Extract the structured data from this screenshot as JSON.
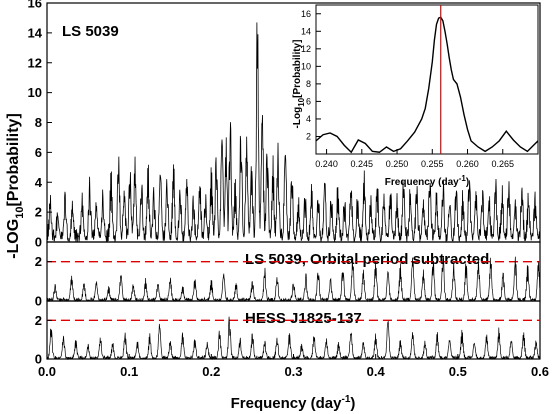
{
  "chart_data": [
    {
      "type": "line",
      "panel": "top",
      "label": "LS 5039",
      "x_range": [
        0.0,
        0.6
      ],
      "ylim": [
        0,
        16
      ],
      "y_ticks": [
        "0",
        "2",
        "4",
        "6",
        "8",
        "10",
        "12",
        "14",
        "16"
      ],
      "x_peaks": [
        0.004,
        0.013,
        0.022,
        0.031,
        0.043,
        0.052,
        0.06,
        0.068,
        0.078,
        0.087,
        0.094,
        0.101,
        0.107,
        0.115,
        0.123,
        0.13,
        0.138,
        0.146,
        0.154,
        0.162,
        0.17,
        0.178,
        0.186,
        0.193,
        0.2,
        0.206,
        0.213,
        0.218,
        0.223,
        0.229,
        0.236,
        0.243,
        0.249,
        0.256,
        0.262,
        0.268,
        0.275,
        0.281,
        0.29,
        0.298,
        0.306,
        0.314,
        0.322,
        0.33,
        0.338,
        0.346,
        0.354,
        0.362,
        0.37,
        0.378,
        0.386,
        0.394,
        0.402,
        0.41,
        0.418,
        0.426,
        0.434,
        0.442,
        0.45,
        0.458,
        0.466,
        0.474,
        0.482,
        0.49,
        0.498,
        0.506,
        0.514,
        0.522,
        0.53,
        0.538,
        0.546,
        0.554,
        0.562,
        0.57,
        0.578,
        0.586,
        0.594
      ],
      "y_peaks": [
        2.5,
        1.8,
        3.0,
        2.3,
        2.8,
        3.6,
        2.4,
        3.0,
        4.2,
        5.5,
        3.3,
        4.6,
        5.2,
        3.8,
        4.7,
        3.2,
        4.6,
        3.9,
        5.2,
        3.3,
        4.3,
        2.6,
        3.6,
        2.7,
        4.4,
        5.6,
        7.6,
        6.2,
        8.3,
        3.5,
        7.3,
        6.8,
        5.2,
        15.4,
        9.0,
        6.6,
        5.0,
        5.9,
        6.4,
        4.3,
        2.5,
        2.9,
        3.3,
        2.7,
        4.1,
        2.6,
        3.4,
        2.4,
        3.6,
        2.7,
        3.9,
        2.5,
        3.7,
        2.8,
        3.3,
        2.6,
        3.9,
        3.0,
        3.6,
        2.7,
        4.2,
        3.0,
        3.6,
        2.5,
        3.8,
        2.9,
        4.2,
        3.1,
        3.6,
        2.7,
        4.3,
        3.0,
        3.5,
        2.6,
        3.5,
        2.8,
        2.9
      ]
    },
    {
      "type": "line",
      "panel": "inset",
      "xlabel": "Frequency (day",
      "xlabel_sup": "-1",
      "xlabel_close": ")",
      "ylabel": "-Log",
      "ylabel_sub": "10",
      "ylabel_rest": "[Probability]",
      "x_range": [
        0.2385,
        0.27
      ],
      "ylim": [
        0,
        17
      ],
      "x_ticks": [
        "0.240",
        "0.245",
        "0.250",
        "0.255",
        "0.260",
        "0.265"
      ],
      "y_ticks": [
        "2",
        "4",
        "6",
        "8",
        "10",
        "12",
        "14",
        "16"
      ],
      "marker_x": 0.2562,
      "marker_color": "#dd0000",
      "x": [
        0.2385,
        0.2395,
        0.2405,
        0.2415,
        0.2425,
        0.2435,
        0.2445,
        0.2455,
        0.2465,
        0.2475,
        0.2485,
        0.2495,
        0.2505,
        0.2515,
        0.2525,
        0.2535,
        0.254,
        0.2545,
        0.255,
        0.2553,
        0.2556,
        0.2559,
        0.2562,
        0.2565,
        0.2568,
        0.2571,
        0.2574,
        0.2577,
        0.258,
        0.2585,
        0.259,
        0.2595,
        0.26,
        0.2605,
        0.2615,
        0.2625,
        0.2635,
        0.2645,
        0.2655,
        0.2665,
        0.2675,
        0.2685,
        0.27
      ],
      "y": [
        1.5,
        2.2,
        2.4,
        2.0,
        1.0,
        0.2,
        1.6,
        1.2,
        0.3,
        0.2,
        0.8,
        0.3,
        0.6,
        1.5,
        2.5,
        4.0,
        5.2,
        7.5,
        10.5,
        13.0,
        14.8,
        15.5,
        15.6,
        15.2,
        14.0,
        12.6,
        11.0,
        9.6,
        8.5,
        8.0,
        6.5,
        4.5,
        2.8,
        1.5,
        0.8,
        0.3,
        0.8,
        1.5,
        2.6,
        1.6,
        0.8,
        0.3,
        1.5
      ]
    },
    {
      "type": "line",
      "panel": "middle",
      "label": "LS 5039, Orbital period subtracted",
      "x_range": [
        0.0,
        0.6
      ],
      "ylim": [
        0,
        3
      ],
      "y_ticks": [
        "0",
        "2"
      ],
      "threshold": 2,
      "threshold_color": "#dd0000",
      "x_peaks": [
        0.01,
        0.03,
        0.045,
        0.06,
        0.075,
        0.09,
        0.105,
        0.12,
        0.135,
        0.15,
        0.165,
        0.18,
        0.2,
        0.215,
        0.23,
        0.25,
        0.265,
        0.28,
        0.3,
        0.315,
        0.33,
        0.345,
        0.36,
        0.372,
        0.385,
        0.4,
        0.415,
        0.43,
        0.445,
        0.458,
        0.47,
        0.482,
        0.495,
        0.51,
        0.525,
        0.54,
        0.555,
        0.57,
        0.585,
        0.598
      ],
      "y_peaks": [
        0.8,
        1.3,
        0.9,
        1.0,
        0.7,
        1.4,
        0.8,
        1.0,
        0.9,
        1.2,
        0.7,
        1.1,
        1.0,
        1.5,
        0.9,
        1.0,
        1.6,
        1.2,
        0.9,
        1.3,
        1.6,
        1.1,
        1.8,
        2.2,
        1.5,
        2.0,
        1.6,
        1.8,
        2.3,
        1.5,
        2.2,
        2.4,
        1.8,
        2.0,
        2.1,
        2.2,
        1.5,
        2.3,
        1.8,
        2.0
      ]
    },
    {
      "type": "line",
      "panel": "bottom",
      "label": "HESS J1825-137",
      "xlabel": "Frequency (day",
      "xlabel_sup": "-1",
      "xlabel_close": ")",
      "x_range": [
        0.0,
        0.6
      ],
      "x_ticks": [
        "0.0",
        "0.1",
        "0.2",
        "0.3",
        "0.4",
        "0.5",
        "0.6"
      ],
      "ylim": [
        0,
        3
      ],
      "y_ticks": [
        "0",
        "2"
      ],
      "threshold": 2,
      "threshold_color": "#dd0000",
      "x_peaks": [
        0.005,
        0.02,
        0.035,
        0.05,
        0.065,
        0.08,
        0.095,
        0.11,
        0.125,
        0.137,
        0.15,
        0.165,
        0.18,
        0.195,
        0.21,
        0.222,
        0.235,
        0.25,
        0.265,
        0.28,
        0.295,
        0.31,
        0.325,
        0.34,
        0.355,
        0.37,
        0.385,
        0.4,
        0.415,
        0.43,
        0.445,
        0.46,
        0.475,
        0.49,
        0.505,
        0.52,
        0.535,
        0.55,
        0.565,
        0.58,
        0.595
      ],
      "y_peaks": [
        1.7,
        1.2,
        1.0,
        0.7,
        1.1,
        0.8,
        1.3,
        0.9,
        1.2,
        1.9,
        0.9,
        1.4,
        1.0,
        0.8,
        1.4,
        2.3,
        1.0,
        1.3,
        0.9,
        1.0,
        1.3,
        0.7,
        1.2,
        1.0,
        0.8,
        1.5,
        0.9,
        1.2,
        2.2,
        1.0,
        1.4,
        0.9,
        1.3,
        1.1,
        1.5,
        0.9,
        1.2,
        1.5,
        1.0,
        1.4,
        0.9
      ]
    }
  ],
  "shared_ylabel": "-LOG",
  "shared_ylabel_sub": "10",
  "shared_ylabel_rest": "[Probability]"
}
